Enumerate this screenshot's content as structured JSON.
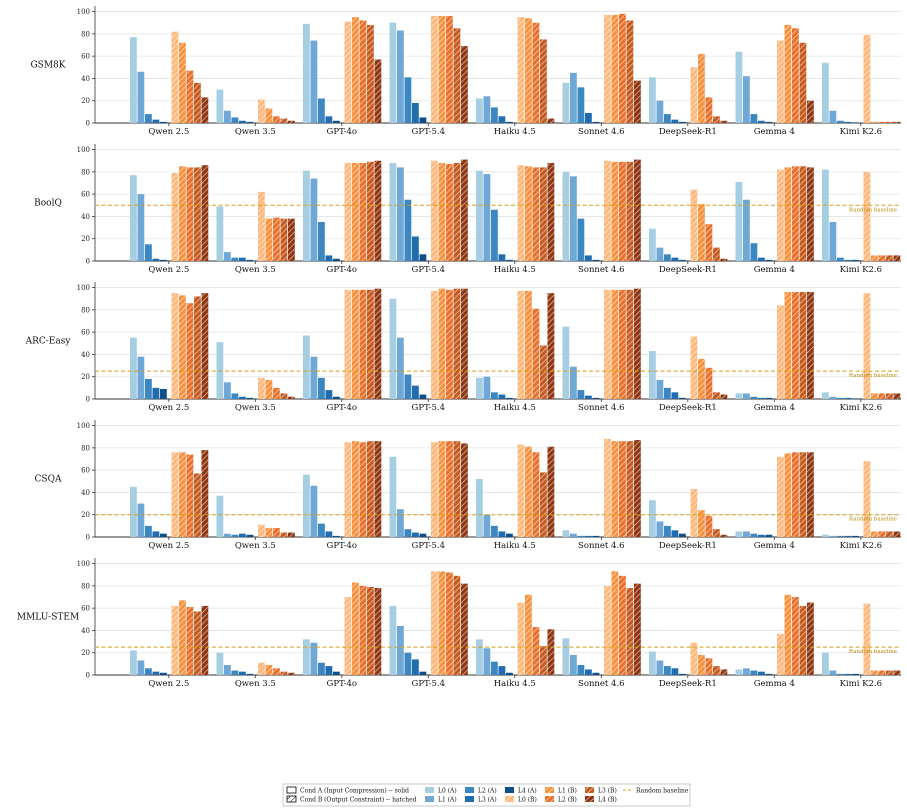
{
  "chart_data": {
    "type": "bar",
    "categories": [
      "Qwen 2.5",
      "Qwen 3.5",
      "GPT-4o",
      "GPT-5.4",
      "Haiku 4.5",
      "Sonnet 4.6",
      "DeepSeek-R1",
      "Gemma 4",
      "Kimi K2.6"
    ],
    "series_names": [
      "L0 (A)",
      "L1 (A)",
      "L2 (A)",
      "L3 (A)",
      "L4 (A)",
      "L0 (B)",
      "L1 (B)",
      "L2 (B)",
      "L3 (B)",
      "L4 (B)"
    ],
    "series_colors": [
      "#a6cee3",
      "#6fa8d6",
      "#3a87c2",
      "#1f6db0",
      "#0d4f8b",
      "#fdb97d",
      "#f8913e",
      "#e8702a",
      "#c65a1e",
      "#8f3511"
    ],
    "hatched_series": [
      5,
      6,
      7,
      8,
      9
    ],
    "yticks": [
      0,
      20,
      40,
      60,
      80,
      100
    ],
    "ylim": [
      0,
      105
    ],
    "panels": [
      {
        "ylabel": "GSM8K",
        "baseline": null,
        "values": [
          [
            77,
            46,
            8,
            3,
            1,
            82,
            72,
            47,
            36,
            23
          ],
          [
            30,
            11,
            5,
            2,
            1,
            21,
            13,
            6,
            4,
            2
          ],
          [
            89,
            74,
            22,
            6,
            2,
            91,
            95,
            92,
            88,
            57
          ],
          [
            90,
            83,
            41,
            18,
            5,
            96,
            96,
            96,
            85,
            69
          ],
          [
            22,
            24,
            14,
            6,
            1,
            95,
            94,
            90,
            75,
            4
          ],
          [
            36,
            45,
            32,
            9,
            1,
            97,
            97,
            98,
            92,
            38
          ],
          [
            41,
            20,
            8,
            3,
            1,
            50,
            62,
            23,
            6,
            2
          ],
          [
            64,
            42,
            8,
            2,
            1,
            74,
            88,
            85,
            72,
            20
          ],
          [
            54,
            11,
            2,
            1,
            0,
            79,
            1,
            1,
            1,
            1
          ]
        ]
      },
      {
        "ylabel": "BoolQ",
        "baseline": 50,
        "values": [
          [
            77,
            60,
            15,
            2,
            1,
            79,
            85,
            84,
            84,
            86
          ],
          [
            49,
            8,
            3,
            3,
            1,
            62,
            38,
            39,
            38,
            38
          ],
          [
            81,
            74,
            35,
            5,
            2,
            88,
            88,
            88,
            89,
            90
          ],
          [
            88,
            84,
            55,
            22,
            6,
            90,
            88,
            87,
            88,
            91
          ],
          [
            81,
            78,
            46,
            6,
            1,
            86,
            85,
            84,
            84,
            88
          ],
          [
            80,
            76,
            38,
            5,
            1,
            90,
            89,
            89,
            89,
            91
          ],
          [
            29,
            12,
            6,
            3,
            1,
            64,
            51,
            33,
            12,
            2
          ],
          [
            71,
            55,
            16,
            3,
            1,
            82,
            84,
            85,
            85,
            84
          ],
          [
            82,
            35,
            3,
            1,
            1,
            80,
            5,
            5,
            5,
            5
          ]
        ]
      },
      {
        "ylabel": "ARC-Easy",
        "baseline": 25,
        "values": [
          [
            55,
            38,
            18,
            10,
            9,
            95,
            93,
            86,
            92,
            95
          ],
          [
            51,
            15,
            5,
            2,
            1,
            19,
            17,
            10,
            5,
            2
          ],
          [
            57,
            38,
            19,
            8,
            2,
            98,
            98,
            98,
            98,
            99
          ],
          [
            90,
            55,
            22,
            12,
            4,
            97,
            99,
            98,
            99,
            99
          ],
          [
            19,
            20,
            6,
            4,
            1,
            97,
            97,
            81,
            48,
            95
          ],
          [
            65,
            29,
            8,
            3,
            1,
            98,
            98,
            98,
            98,
            99
          ],
          [
            43,
            17,
            10,
            6,
            1,
            56,
            36,
            28,
            6,
            4
          ],
          [
            5,
            5,
            2,
            1,
            1,
            84,
            96,
            96,
            96,
            96
          ],
          [
            6,
            2,
            1,
            1,
            0,
            95,
            5,
            5,
            5,
            5
          ]
        ]
      },
      {
        "ylabel": "CSQA",
        "baseline": 20,
        "values": [
          [
            45,
            30,
            10,
            5,
            3,
            76,
            76,
            74,
            57,
            78
          ],
          [
            37,
            3,
            2,
            3,
            2,
            11,
            8,
            8,
            4,
            4
          ],
          [
            56,
            46,
            12,
            5,
            1,
            85,
            86,
            85,
            86,
            86
          ],
          [
            72,
            25,
            7,
            4,
            3,
            85,
            86,
            86,
            86,
            84
          ],
          [
            52,
            20,
            10,
            5,
            3,
            83,
            81,
            76,
            58,
            81
          ],
          [
            6,
            3,
            1,
            1,
            1,
            88,
            86,
            86,
            86,
            87
          ],
          [
            33,
            14,
            10,
            6,
            3,
            43,
            24,
            19,
            7,
            2
          ],
          [
            5,
            5,
            3,
            2,
            2,
            72,
            75,
            76,
            76,
            76
          ],
          [
            2,
            1,
            1,
            1,
            1,
            68,
            5,
            5,
            5,
            5
          ]
        ]
      },
      {
        "ylabel": "MMLU-STEM",
        "baseline": 25,
        "values": [
          [
            22,
            13,
            6,
            3,
            2,
            62,
            67,
            61,
            57,
            62
          ],
          [
            20,
            9,
            4,
            3,
            1,
            11,
            9,
            6,
            3,
            2
          ],
          [
            32,
            29,
            11,
            8,
            3,
            70,
            83,
            80,
            79,
            78
          ],
          [
            62,
            44,
            20,
            14,
            3,
            93,
            93,
            92,
            89,
            82
          ],
          [
            32,
            24,
            12,
            8,
            2,
            65,
            72,
            43,
            26,
            41
          ],
          [
            33,
            18,
            9,
            5,
            2,
            80,
            93,
            89,
            78,
            82
          ],
          [
            21,
            13,
            8,
            6,
            1,
            29,
            18,
            15,
            8,
            5
          ],
          [
            5,
            6,
            4,
            3,
            1,
            37,
            72,
            70,
            62,
            65
          ],
          [
            20,
            4,
            1,
            1,
            1,
            64,
            4,
            4,
            4,
            4
          ]
        ]
      }
    ]
  },
  "baseline_label": "Random baseline",
  "legend": {
    "items": [
      {
        "label": "Cond A (Input Compression) -- solid",
        "kind": "box",
        "color": "#ffffff",
        "hatch": false
      },
      {
        "label": "Cond B (Output Constraint) -- hatched",
        "kind": "box",
        "color": "#ffffff",
        "hatch": true
      },
      {
        "label": "L0 (A)",
        "kind": "swatch",
        "color": "#a6cee3",
        "hatch": false
      },
      {
        "label": "L1 (A)",
        "kind": "swatch",
        "color": "#6fa8d6",
        "hatch": false
      },
      {
        "label": "L2 (A)",
        "kind": "swatch",
        "color": "#3a87c2",
        "hatch": false
      },
      {
        "label": "L3 (A)",
        "kind": "swatch",
        "color": "#1f6db0",
        "hatch": false
      },
      {
        "label": "L4 (A)",
        "kind": "swatch",
        "color": "#0d4f8b",
        "hatch": false
      },
      {
        "label": "L0 (B)",
        "kind": "swatch",
        "color": "#fdb97d",
        "hatch": true
      },
      {
        "label": "L1 (B)",
        "kind": "swatch",
        "color": "#f8913e",
        "hatch": true
      },
      {
        "label": "L2 (B)",
        "kind": "swatch",
        "color": "#e8702a",
        "hatch": true
      },
      {
        "label": "L3 (B)",
        "kind": "swatch",
        "color": "#c65a1e",
        "hatch": true
      },
      {
        "label": "L4 (B)",
        "kind": "swatch",
        "color": "#8f3511",
        "hatch": true
      },
      {
        "label": "Random baseline",
        "kind": "line",
        "color": "#d4a017",
        "hatch": false
      }
    ]
  }
}
